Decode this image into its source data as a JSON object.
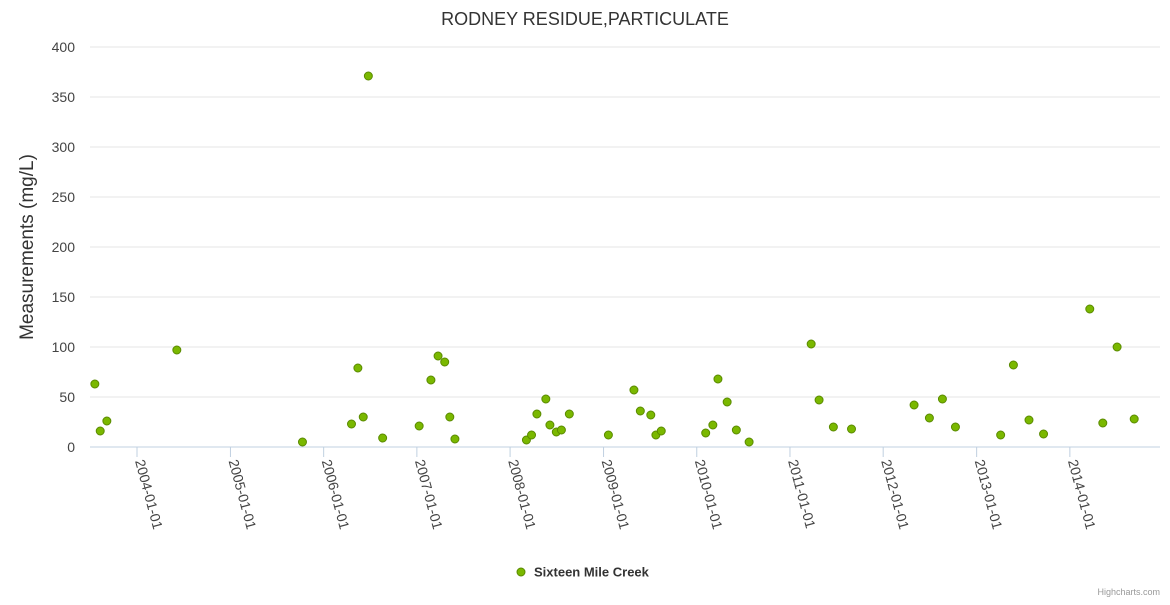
{
  "chart_data": {
    "type": "scatter",
    "title": "RODNEY RESIDUE,PARTICULATE",
    "ylabel": "Measurements (mg/L)",
    "xlabel": "",
    "ylim": [
      0,
      400
    ],
    "yticks": [
      0,
      50,
      100,
      150,
      200,
      250,
      300,
      350,
      400
    ],
    "xlim": [
      "2003-07-01",
      "2014-12-20"
    ],
    "xticks": [
      "2004-01-01",
      "2005-01-01",
      "2006-01-01",
      "2007-01-01",
      "2008-01-01",
      "2009-01-01",
      "2010-01-01",
      "2011-01-01",
      "2012-01-01",
      "2013-01-01",
      "2014-01-01"
    ],
    "grid": true,
    "legend_position": "bottom-center",
    "series": [
      {
        "name": "Sixteen Mile Creek",
        "color": "#6aa800",
        "points": [
          [
            "2003-07-20",
            63
          ],
          [
            "2003-08-10",
            16
          ],
          [
            "2003-09-05",
            26
          ],
          [
            "2004-06-05",
            97
          ],
          [
            "2005-10-10",
            5
          ],
          [
            "2006-04-20",
            23
          ],
          [
            "2006-05-15",
            79
          ],
          [
            "2006-06-05",
            30
          ],
          [
            "2006-06-25",
            371
          ],
          [
            "2006-08-20",
            9
          ],
          [
            "2007-01-10",
            21
          ],
          [
            "2007-02-25",
            67
          ],
          [
            "2007-03-25",
            91
          ],
          [
            "2007-04-20",
            85
          ],
          [
            "2007-05-10",
            30
          ],
          [
            "2007-05-30",
            8
          ],
          [
            "2008-03-05",
            7
          ],
          [
            "2008-03-25",
            12
          ],
          [
            "2008-04-15",
            33
          ],
          [
            "2008-05-20",
            48
          ],
          [
            "2008-06-05",
            22
          ],
          [
            "2008-06-30",
            15
          ],
          [
            "2008-07-20",
            17
          ],
          [
            "2008-08-20",
            33
          ],
          [
            "2009-01-20",
            12
          ],
          [
            "2009-04-30",
            57
          ],
          [
            "2009-05-25",
            36
          ],
          [
            "2009-07-05",
            32
          ],
          [
            "2009-07-25",
            12
          ],
          [
            "2009-08-15",
            16
          ],
          [
            "2010-02-05",
            14
          ],
          [
            "2010-03-05",
            22
          ],
          [
            "2010-03-25",
            68
          ],
          [
            "2010-04-30",
            45
          ],
          [
            "2010-06-05",
            17
          ],
          [
            "2010-07-25",
            5
          ],
          [
            "2011-03-25",
            103
          ],
          [
            "2011-04-25",
            47
          ],
          [
            "2011-06-20",
            20
          ],
          [
            "2011-08-30",
            18
          ],
          [
            "2012-05-01",
            42
          ],
          [
            "2012-06-30",
            29
          ],
          [
            "2012-08-20",
            48
          ],
          [
            "2012-10-10",
            20
          ],
          [
            "2013-04-05",
            12
          ],
          [
            "2013-05-25",
            82
          ],
          [
            "2013-07-25",
            27
          ],
          [
            "2013-09-20",
            13
          ],
          [
            "2014-03-20",
            138
          ],
          [
            "2014-05-10",
            24
          ],
          [
            "2014-07-05",
            100
          ],
          [
            "2014-09-10",
            28
          ]
        ]
      }
    ]
  },
  "credits": "Highcharts.com"
}
